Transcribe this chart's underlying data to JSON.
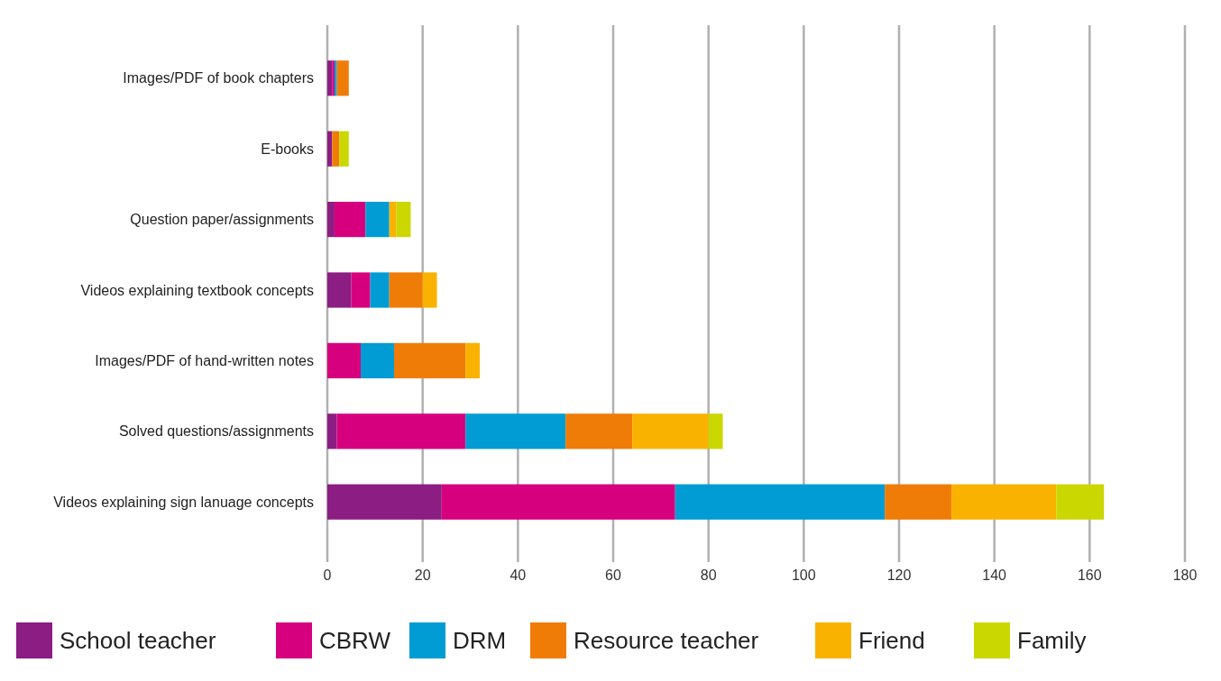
{
  "chart_data": {
    "type": "bar",
    "orientation": "horizontal",
    "stacked": true,
    "categories": [
      "Images/PDF of book chapters",
      "E-books",
      "Question paper/assignments",
      "Videos explaining textbook concepts",
      "Images/PDF of hand-written notes",
      "Solved questions/assignments",
      "Videos explaining sign lanuage concepts"
    ],
    "series": [
      {
        "name": "School teacher",
        "color": "#8c1d82",
        "values": [
          1,
          1,
          1.5,
          5,
          0,
          2,
          24
        ]
      },
      {
        "name": "CBRW",
        "color": "#d6007f",
        "values": [
          0.5,
          0,
          6.5,
          4,
          7,
          27,
          49
        ]
      },
      {
        "name": "DRM",
        "color": "#009cd3",
        "values": [
          0.5,
          0,
          5,
          4,
          7,
          21,
          44
        ]
      },
      {
        "name": "Resource teacher",
        "color": "#f07c08",
        "values": [
          2.5,
          1.5,
          0,
          7,
          15,
          14,
          14
        ]
      },
      {
        "name": "Friend",
        "color": "#f9b200",
        "values": [
          0,
          0,
          1.5,
          3,
          3,
          16,
          22
        ]
      },
      {
        "name": "Family",
        "color": "#cbd700",
        "values": [
          0,
          2,
          3,
          0,
          0,
          3,
          10
        ]
      }
    ],
    "xlim": [
      0,
      180
    ],
    "xticks": [
      0,
      20,
      40,
      60,
      80,
      100,
      120,
      140,
      160,
      180
    ],
    "grid": "x",
    "legend": "bottom"
  }
}
